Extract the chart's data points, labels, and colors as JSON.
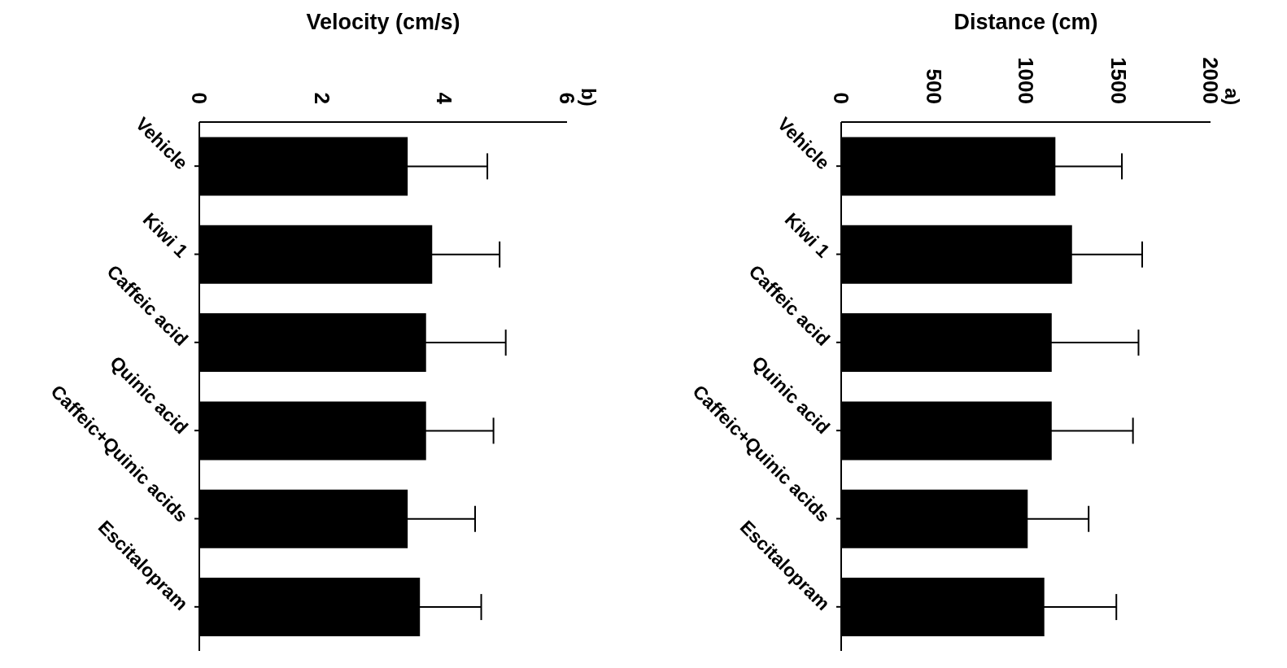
{
  "chart_data": [
    {
      "type": "bar",
      "orientation": "horizontal",
      "title": "a)",
      "xlabel": "Distance (cm)",
      "categories": [
        "Vehicle",
        "Kiwi 1",
        "Caffeic acid",
        "Quinic acid",
        "Caffeic+Quinic acids",
        "Escitalopram"
      ],
      "values": [
        1160,
        1250,
        1140,
        1140,
        1010,
        1100
      ],
      "errors": [
        360,
        380,
        470,
        440,
        330,
        390
      ],
      "color": "#000000",
      "xlim": [
        0,
        2000
      ],
      "xticks": [
        0,
        500,
        1000,
        1500,
        2000
      ]
    },
    {
      "type": "bar",
      "orientation": "horizontal",
      "title": "b)",
      "xlabel": "Velocity (cm/s)",
      "categories": [
        "Vehicle",
        "Kiwi 1",
        "Caffeic acid",
        "Quinic acid",
        "Caffeic+Quinic acids",
        "Escitalopram"
      ],
      "values": [
        3.4,
        3.8,
        3.7,
        3.7,
        3.4,
        3.6
      ],
      "errors": [
        1.3,
        1.1,
        1.3,
        1.1,
        1.1,
        1.0
      ],
      "color": "#000000",
      "xlim": [
        0,
        6
      ],
      "xticks": [
        0,
        2,
        4,
        6
      ]
    }
  ]
}
